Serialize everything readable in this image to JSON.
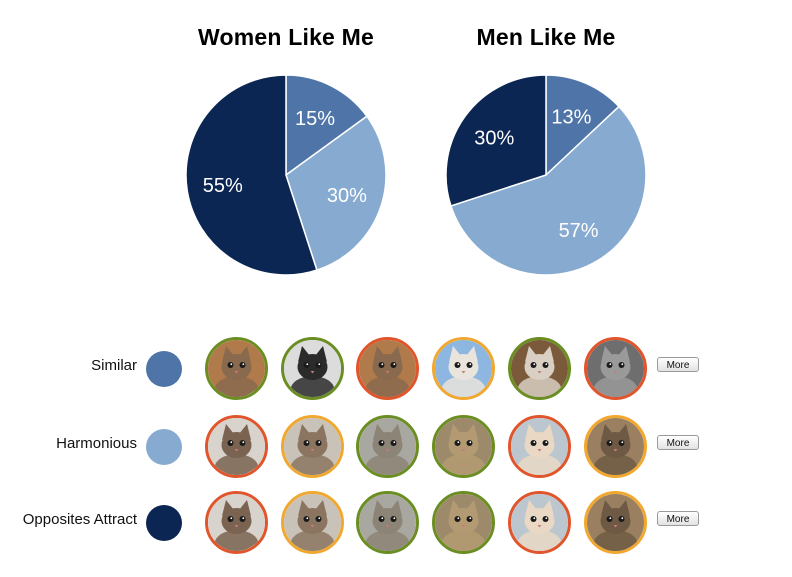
{
  "chart_data": [
    {
      "type": "pie",
      "title": "Women Like Me",
      "slices": [
        {
          "label": "Similar",
          "value": 15,
          "text": "15%",
          "color": "#4f74a8"
        },
        {
          "label": "Harmonious",
          "value": 30,
          "text": "30%",
          "color": "#87aad0"
        },
        {
          "label": "Opposites Attract",
          "value": 55,
          "text": "55%",
          "color": "#0b2653"
        }
      ]
    },
    {
      "type": "pie",
      "title": "Men Like Me",
      "slices": [
        {
          "label": "Similar",
          "value": 13,
          "text": "13%",
          "color": "#4f74a8"
        },
        {
          "label": "Harmonious",
          "value": 57,
          "text": "57%",
          "color": "#87aad0"
        },
        {
          "label": "Opposites Attract",
          "value": 30,
          "text": "30%",
          "color": "#0b2653"
        }
      ]
    }
  ],
  "legend": [
    {
      "label": "Similar",
      "color": "#4f74a8",
      "more_label": "More",
      "thumbs": [
        {
          "icon": "kitten-photo",
          "ring": "#6b8e23",
          "bg": "#b07a4a",
          "fur": "#8a6a4e"
        },
        {
          "icon": "kitten-photo",
          "ring": "#6b8e23",
          "bg": "#dcdcdc",
          "fur": "#2b2b2b"
        },
        {
          "icon": "kitten-photo",
          "ring": "#e0552b",
          "bg": "#b07a4a",
          "fur": "#8a6a4e"
        },
        {
          "icon": "kitten-photo",
          "ring": "#f0a830",
          "bg": "#8db6e0",
          "fur": "#e9e4dc"
        },
        {
          "icon": "kitten-photo",
          "ring": "#6b8e23",
          "bg": "#7a5a3a",
          "fur": "#d9cfc2"
        },
        {
          "icon": "kitten-photo",
          "ring": "#e0552b",
          "bg": "#6e6e6e",
          "fur": "#9a9a9a"
        }
      ]
    },
    {
      "label": "Harmonious",
      "color": "#87aad0",
      "more_label": "More",
      "thumbs": [
        {
          "icon": "kitten-photo",
          "ring": "#e0552b",
          "bg": "#d8d3cc",
          "fur": "#7a6350"
        },
        {
          "icon": "kitten-photo",
          "ring": "#f0a830",
          "bg": "#c9c2b8",
          "fur": "#8b7560"
        },
        {
          "icon": "kitten-photo",
          "ring": "#6b8e23",
          "bg": "#a8a8a0",
          "fur": "#8c8476"
        },
        {
          "icon": "kitten-photo",
          "ring": "#6b8e23",
          "bg": "#9c8a6a",
          "fur": "#b49a72"
        },
        {
          "icon": "kitten-photo",
          "ring": "#e0552b",
          "bg": "#bcc6cf",
          "fur": "#e9d8c4"
        },
        {
          "icon": "kitten-photo",
          "ring": "#f0a830",
          "bg": "#9a8060",
          "fur": "#6e5a44"
        }
      ]
    },
    {
      "label": "Opposites Attract",
      "color": "#0b2653",
      "more_label": "More",
      "thumbs": [
        {
          "icon": "kitten-photo",
          "ring": "#e0552b",
          "bg": "#d8d3cc",
          "fur": "#7a6350"
        },
        {
          "icon": "kitten-photo",
          "ring": "#f0a830",
          "bg": "#c9c2b8",
          "fur": "#8b7560"
        },
        {
          "icon": "kitten-photo",
          "ring": "#6b8e23",
          "bg": "#a8a8a0",
          "fur": "#8c8476"
        },
        {
          "icon": "kitten-photo",
          "ring": "#6b8e23",
          "bg": "#9c8a6a",
          "fur": "#b49a72"
        },
        {
          "icon": "kitten-photo",
          "ring": "#e0552b",
          "bg": "#bcc6cf",
          "fur": "#e9d8c4"
        },
        {
          "icon": "kitten-photo",
          "ring": "#f0a830",
          "bg": "#9a8060",
          "fur": "#6e5a44"
        }
      ]
    }
  ]
}
